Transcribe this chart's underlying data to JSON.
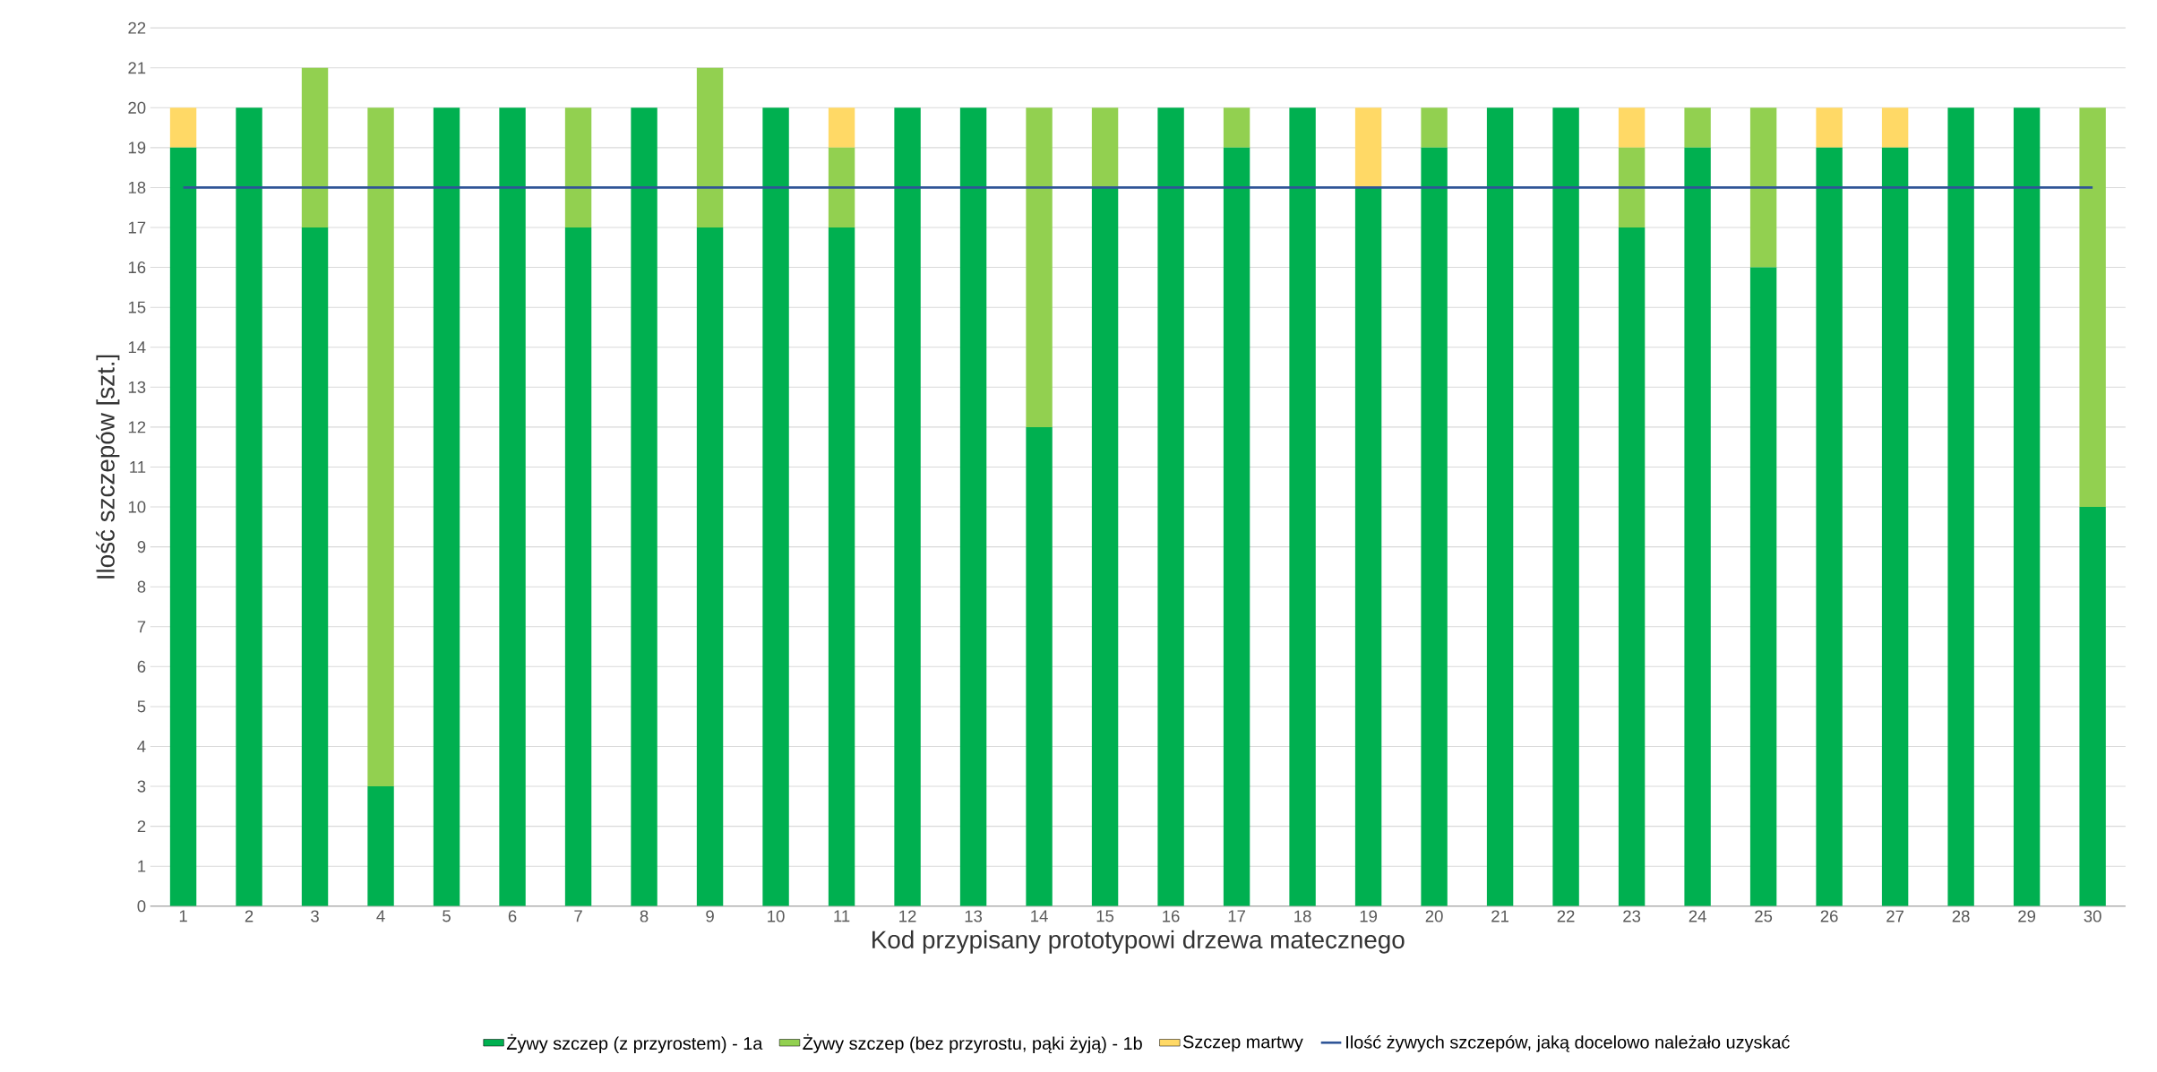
{
  "chart_data": {
    "type": "bar",
    "stacked": true,
    "xlabel": "Kod przypisany prototypowi drzewa matecznego",
    "ylabel": "Ilość szczepów [szt.]",
    "categories": [
      "1",
      "2",
      "3",
      "4",
      "5",
      "6",
      "7",
      "8",
      "9",
      "10",
      "11",
      "12",
      "13",
      "14",
      "15",
      "16",
      "17",
      "18",
      "19",
      "20",
      "21",
      "22",
      "23",
      "24",
      "25",
      "26",
      "27",
      "28",
      "29",
      "30"
    ],
    "series": [
      {
        "name": "Żywy szczep (z przyrostem) - 1a",
        "color": "#00b050",
        "values": [
          19,
          20,
          17,
          3,
          20,
          20,
          17,
          20,
          17,
          20,
          17,
          20,
          20,
          12,
          18,
          20,
          19,
          20,
          18,
          19,
          20,
          20,
          17,
          19,
          16,
          19,
          19,
          20,
          20,
          10
        ]
      },
      {
        "name": "Żywy szczep (bez przyrostu, pąki żyją) - 1b",
        "color": "#92d050",
        "values": [
          0,
          0,
          4,
          17,
          0,
          0,
          3,
          0,
          4,
          0,
          2,
          0,
          0,
          8,
          2,
          0,
          1,
          0,
          0,
          1,
          0,
          0,
          2,
          1,
          4,
          0,
          0,
          0,
          0,
          10
        ]
      },
      {
        "name": "Szczep martwy",
        "color": "#ffd966",
        "values": [
          1,
          0,
          0,
          0,
          0,
          0,
          0,
          0,
          0,
          0,
          1,
          0,
          0,
          0,
          0,
          0,
          0,
          0,
          2,
          0,
          0,
          0,
          1,
          0,
          0,
          1,
          1,
          0,
          0,
          0
        ]
      },
      {
        "name": "Ilość żywych szczepów, jaką docelowo należało uzyskać",
        "type": "line",
        "color": "#2f5597",
        "values": [
          18,
          18,
          18,
          18,
          18,
          18,
          18,
          18,
          18,
          18,
          18,
          18,
          18,
          18,
          18,
          18,
          18,
          18,
          18,
          18,
          18,
          18,
          18,
          18,
          18,
          18,
          18,
          18,
          18,
          18
        ]
      }
    ],
    "ylim": [
      0,
      22
    ],
    "yticks": [
      0,
      1,
      2,
      3,
      4,
      5,
      6,
      7,
      8,
      9,
      10,
      11,
      12,
      13,
      14,
      15,
      16,
      17,
      18,
      19,
      20,
      21,
      22
    ],
    "grid": "y",
    "legend": "bottom"
  }
}
